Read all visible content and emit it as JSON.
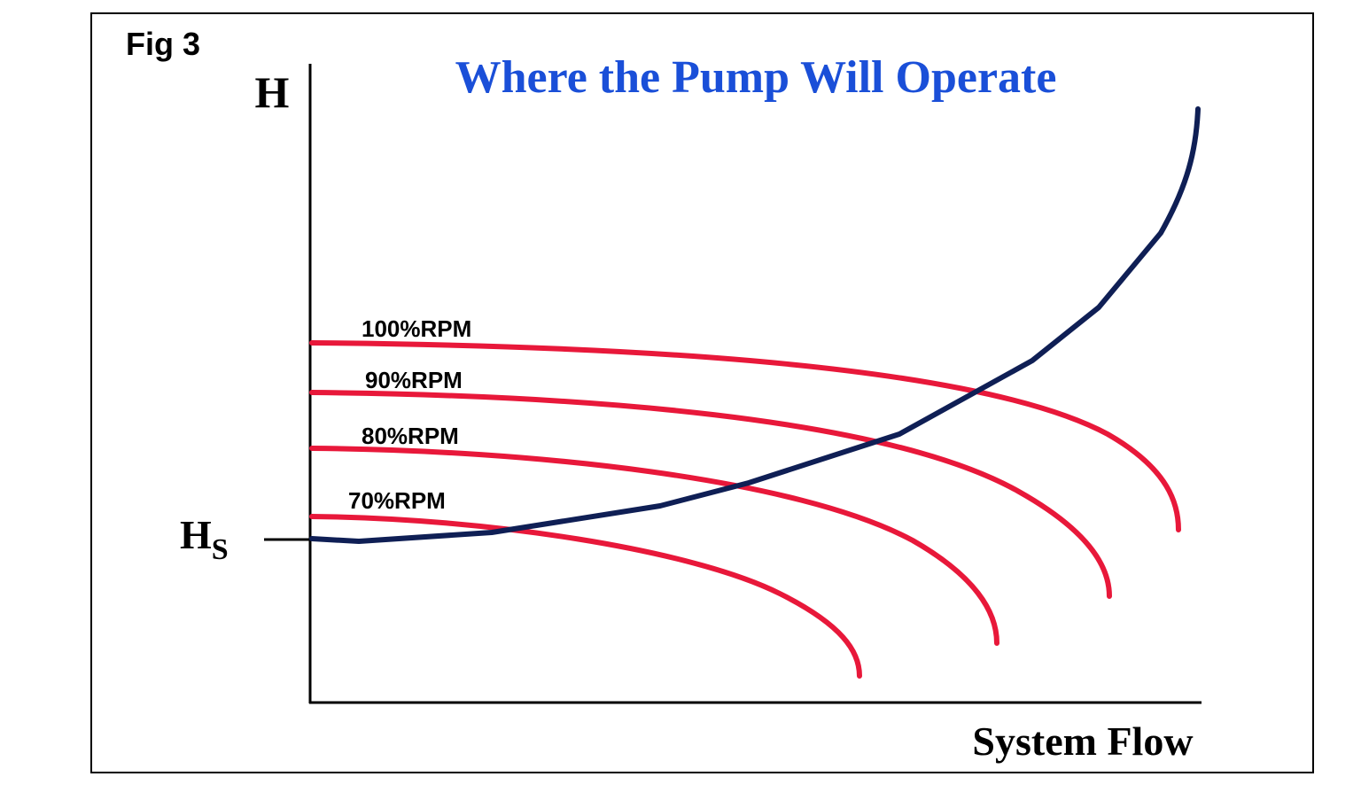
{
  "figure_label": "Fig 3",
  "title": "Where the Pump Will Operate",
  "y_axis_label": "H",
  "static_head_label": {
    "main": "H",
    "subscript": "S"
  },
  "x_axis_label": "System Flow",
  "curves": [
    {
      "label": "100%RPM"
    },
    {
      "label": "90%RPM"
    },
    {
      "label": "80%RPM"
    },
    {
      "label": "70%RPM"
    }
  ]
}
